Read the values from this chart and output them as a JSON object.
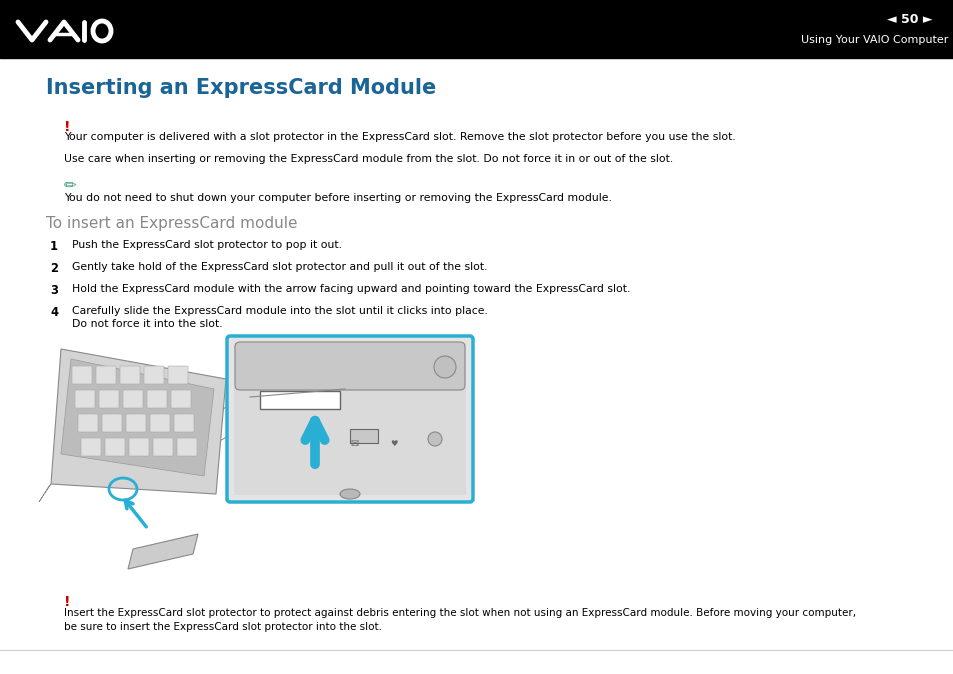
{
  "bg_color": "#ffffff",
  "header_bg": "#000000",
  "header_text_right": "Using Your VAIO Computer",
  "header_page_num": "50",
  "header_text_color": "#ffffff",
  "title": "Inserting an ExpressCard Module",
  "title_color": "#1a6496",
  "title_fontsize": 15,
  "exclaim_color": "#cc0000",
  "note_color": "#3a9a6e",
  "body_text_color": "#000000",
  "body_fontsize": 7.8,
  "warning1_text": "Your computer is delivered with a slot protector in the ExpressCard slot. Remove the slot protector before you use the slot.",
  "warning2_text": "Use care when inserting or removing the ExpressCard module from the slot. Do not force it in or out of the slot.",
  "note_text": "You do not need to shut down your computer before inserting or removing the ExpressCard module.",
  "subtitle": "To insert an ExpressCard module",
  "subtitle_color": "#888888",
  "subtitle_fontsize": 11,
  "steps": [
    {
      "num": "1",
      "text": "Push the ExpressCard slot protector to pop it out."
    },
    {
      "num": "2",
      "text": "Gently take hold of the ExpressCard slot protector and pull it out of the slot."
    },
    {
      "num": "3",
      "text": "Hold the ExpressCard module with the arrow facing upward and pointing toward the ExpressCard slot."
    },
    {
      "num": "4",
      "text": "Carefully slide the ExpressCard module into the slot until it clicks into place.\nDo not force it into the slot."
    }
  ],
  "footer_warn_text": "Insert the ExpressCard slot protector to protect against debris entering the slot when not using an ExpressCard module. Before moving your computer,\nbe sure to insert the ExpressCard slot protector into the slot.",
  "image_box_color": "#29afd4",
  "gray_light": "#d8d8d8",
  "gray_mid": "#b8b8b8",
  "gray_dark": "#888888"
}
